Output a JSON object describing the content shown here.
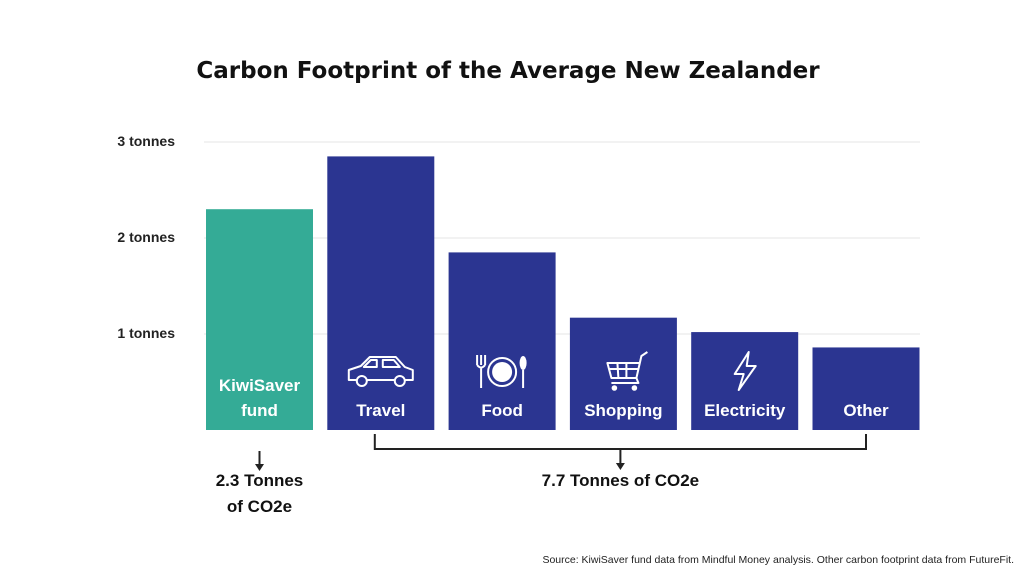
{
  "chart_data": {
    "type": "bar",
    "title": "Carbon Footprint of the Average New Zealander",
    "categories": [
      "KiwiSaver fund",
      "Travel",
      "Food",
      "Shopping",
      "Electricity",
      "Other"
    ],
    "category_lines": [
      [
        "KiwiSaver",
        "fund"
      ],
      [
        "Travel"
      ],
      [
        "Food"
      ],
      [
        "Shopping"
      ],
      [
        "Electricity"
      ],
      [
        "Other"
      ]
    ],
    "category_icons": [
      "",
      "car-icon",
      "plate-utensils-icon",
      "shopping-cart-icon",
      "lightning-bolt-icon",
      ""
    ],
    "values": [
      2.3,
      2.85,
      1.85,
      1.17,
      1.02,
      0.86
    ],
    "ylim": [
      0,
      3
    ],
    "yticks": [
      1,
      2,
      3
    ],
    "ytick_labels": [
      "1 tonnes",
      "2 tonnes",
      "3 tonnes"
    ],
    "grid": true,
    "colors": {
      "highlight": "#34ab96",
      "bar": "#2b3591",
      "bar_text": "#ffffff",
      "grid": "#e4e4e4",
      "annotation": "#222222"
    },
    "highlight_index": 0,
    "annotations": {
      "left": {
        "lines": [
          "2.3 Tonnes",
          "of CO2e"
        ]
      },
      "right": {
        "text": "7.7 Tonnes of CO2e"
      }
    },
    "source": "Source: KiwiSaver fund data from Mindful Money analysis.  Other carbon footprint data from FutureFit."
  }
}
